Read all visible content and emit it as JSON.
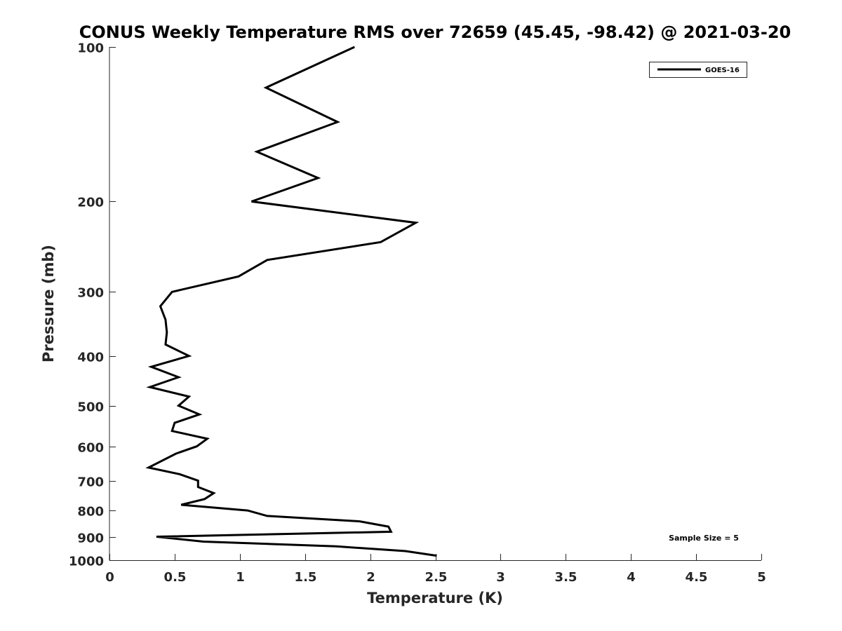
{
  "chart_data": {
    "type": "line",
    "title": "CONUS Weekly Temperature RMS over 72659 (45.45, -98.42) @ 2021-03-20",
    "xlabel": "Temperature (K)",
    "ylabel": "Pressure (mb)",
    "xlim": [
      0,
      5
    ],
    "ylim": [
      100,
      1000
    ],
    "yscale": "log",
    "y_reversed": true,
    "grid": false,
    "x_ticks": [
      "0",
      "0.5",
      "1",
      "1.5",
      "2",
      "2.5",
      "3",
      "3.5",
      "4",
      "4.5",
      "5"
    ],
    "y_ticks": [
      "100",
      "200",
      "300",
      "400",
      "500",
      "600",
      "700",
      "800",
      "900",
      "1000"
    ],
    "legend": {
      "placement": "top-right",
      "entries": [
        "GOES-16"
      ]
    },
    "annotation": "Sample Size = 5",
    "series": [
      {
        "name": "GOES-16",
        "color": "#000000",
        "temperature": [
          1.88,
          1.2,
          1.75,
          1.13,
          1.6,
          1.09,
          2.35,
          2.08,
          1.21,
          0.99,
          0.48,
          0.39,
          0.43,
          0.44,
          0.43,
          0.61,
          0.32,
          0.53,
          0.31,
          0.61,
          0.53,
          0.69,
          0.5,
          0.48,
          0.75,
          0.67,
          0.51,
          0.3,
          0.54,
          0.68,
          0.68,
          0.8,
          0.73,
          0.55,
          1.06,
          1.21,
          1.92,
          2.14,
          2.16,
          0.36,
          0.72,
          1.74,
          2.27,
          2.51
        ],
        "pressure": [
          100,
          120,
          140,
          160,
          180,
          200,
          220,
          240,
          260,
          280,
          300,
          320,
          340,
          360,
          380,
          400,
          420,
          440,
          460,
          480,
          500,
          520,
          540,
          560,
          580,
          600,
          620,
          660,
          680,
          700,
          720,
          740,
          760,
          780,
          800,
          820,
          840,
          860,
          880,
          900,
          920,
          940,
          960,
          980
        ]
      }
    ]
  }
}
